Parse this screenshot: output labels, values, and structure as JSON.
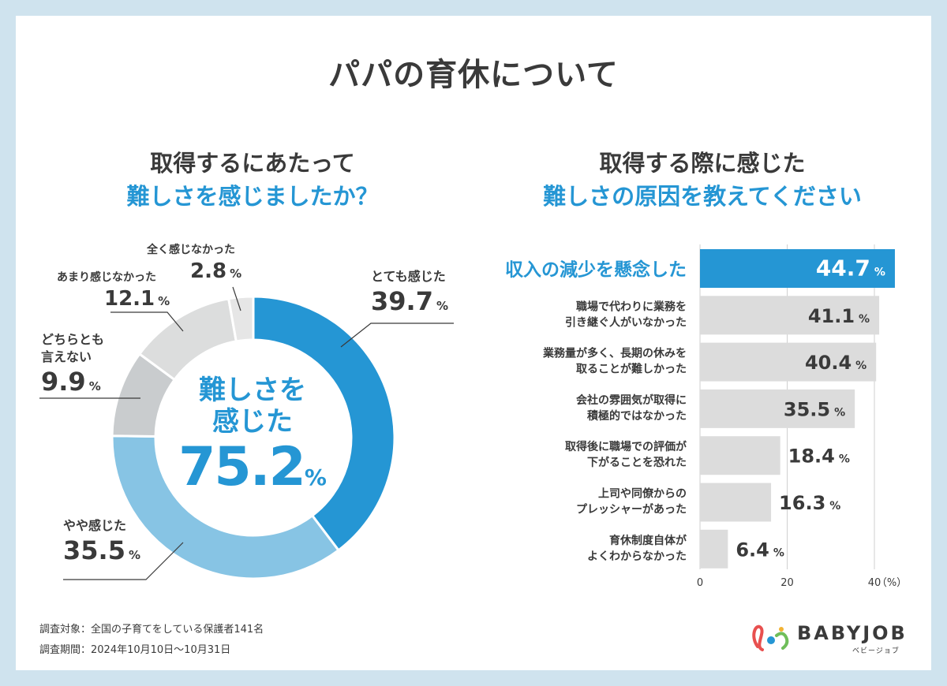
{
  "title": "パパの育休について",
  "left": {
    "subtitle_line1": "取得するにあたって",
    "subtitle_line2": "難しさを感じましたか？",
    "center_line1": "難しさを",
    "center_line2": "感じた",
    "center_value": "75.2",
    "center_unit": "%"
  },
  "right": {
    "subtitle_line1": "取得する際に感じた",
    "subtitle_line2": "難しさの原因を教えてください"
  },
  "chart_data": [
    {
      "type": "pie",
      "donut": true,
      "slices": [
        {
          "label": "とても感じた",
          "value": 39.7,
          "color": "#2596d4"
        },
        {
          "label": "やや感じた",
          "value": 35.5,
          "color": "#87c4e4"
        },
        {
          "label": "どちらとも言えない",
          "value": 9.9,
          "color": "#c9ccce"
        },
        {
          "label": "あまり感じなかった",
          "value": 12.1,
          "color": "#dcdddd"
        },
        {
          "label": "全く感じなかった",
          "value": 2.8,
          "color": "#e6e6e6"
        }
      ],
      "unit": "%"
    },
    {
      "type": "bar",
      "orientation": "horizontal",
      "categories": [
        "収入の減少を懸念した",
        "職場で代わりに業務を引き継ぐ人がいなかった",
        "業務量が多く、長期の休みを取ることが難しかった",
        "会社の雰囲気が取得に積極的ではなかった",
        "取得後に職場での評価が下がることを恐れた",
        "上司や同僚からのプレッシャーがあった",
        "育休制度自体がよくわからなかった"
      ],
      "values": [
        44.7,
        41.1,
        40.4,
        35.5,
        18.4,
        16.3,
        6.4
      ],
      "highlight_index": 0,
      "highlight_color": "#2596d4",
      "bar_color": "#dcdcdc",
      "xlim": [
        0,
        45
      ],
      "xticks": [
        0,
        20,
        40
      ],
      "x_unit": "（%）",
      "value_unit": "%"
    }
  ],
  "labels": {
    "slice0_name": "とても感じた",
    "slice0_val": "39.7",
    "slice1_name": "やや感じた",
    "slice1_val": "35.5",
    "slice2_name1": "どちらとも",
    "slice2_name2": "言えない",
    "slice2_val": "9.9",
    "slice3_name": "あまり感じなかった",
    "slice3_val": "12.1",
    "slice4_name": "全く感じなかった",
    "slice4_val": "2.8",
    "unit": "%"
  },
  "bar_labels": [
    [
      "収入の減少を懸念した"
    ],
    [
      "職場で代わりに業務を",
      "引き継ぐ人がいなかった"
    ],
    [
      "業務量が多く、長期の休みを",
      "取ることが難しかった"
    ],
    [
      "会社の雰囲気が取得に",
      "積極的ではなかった"
    ],
    [
      "取得後に職場での評価が",
      "下がることを恐れた"
    ],
    [
      "上司や同僚からの",
      "プレッシャーがあった"
    ],
    [
      "育休制度自体が",
      "よくわからなかった"
    ]
  ],
  "footnotes": {
    "target": "調査対象：全国の子育てをしている保護者141名",
    "period": "調査期間：2024年10月10日〜10月31日"
  },
  "logo": {
    "name": "BABYJOB",
    "sub": "ベビージョブ",
    "colors": [
      "#e8504f",
      "#2596d4",
      "#f2b233",
      "#6fbe5a"
    ]
  }
}
